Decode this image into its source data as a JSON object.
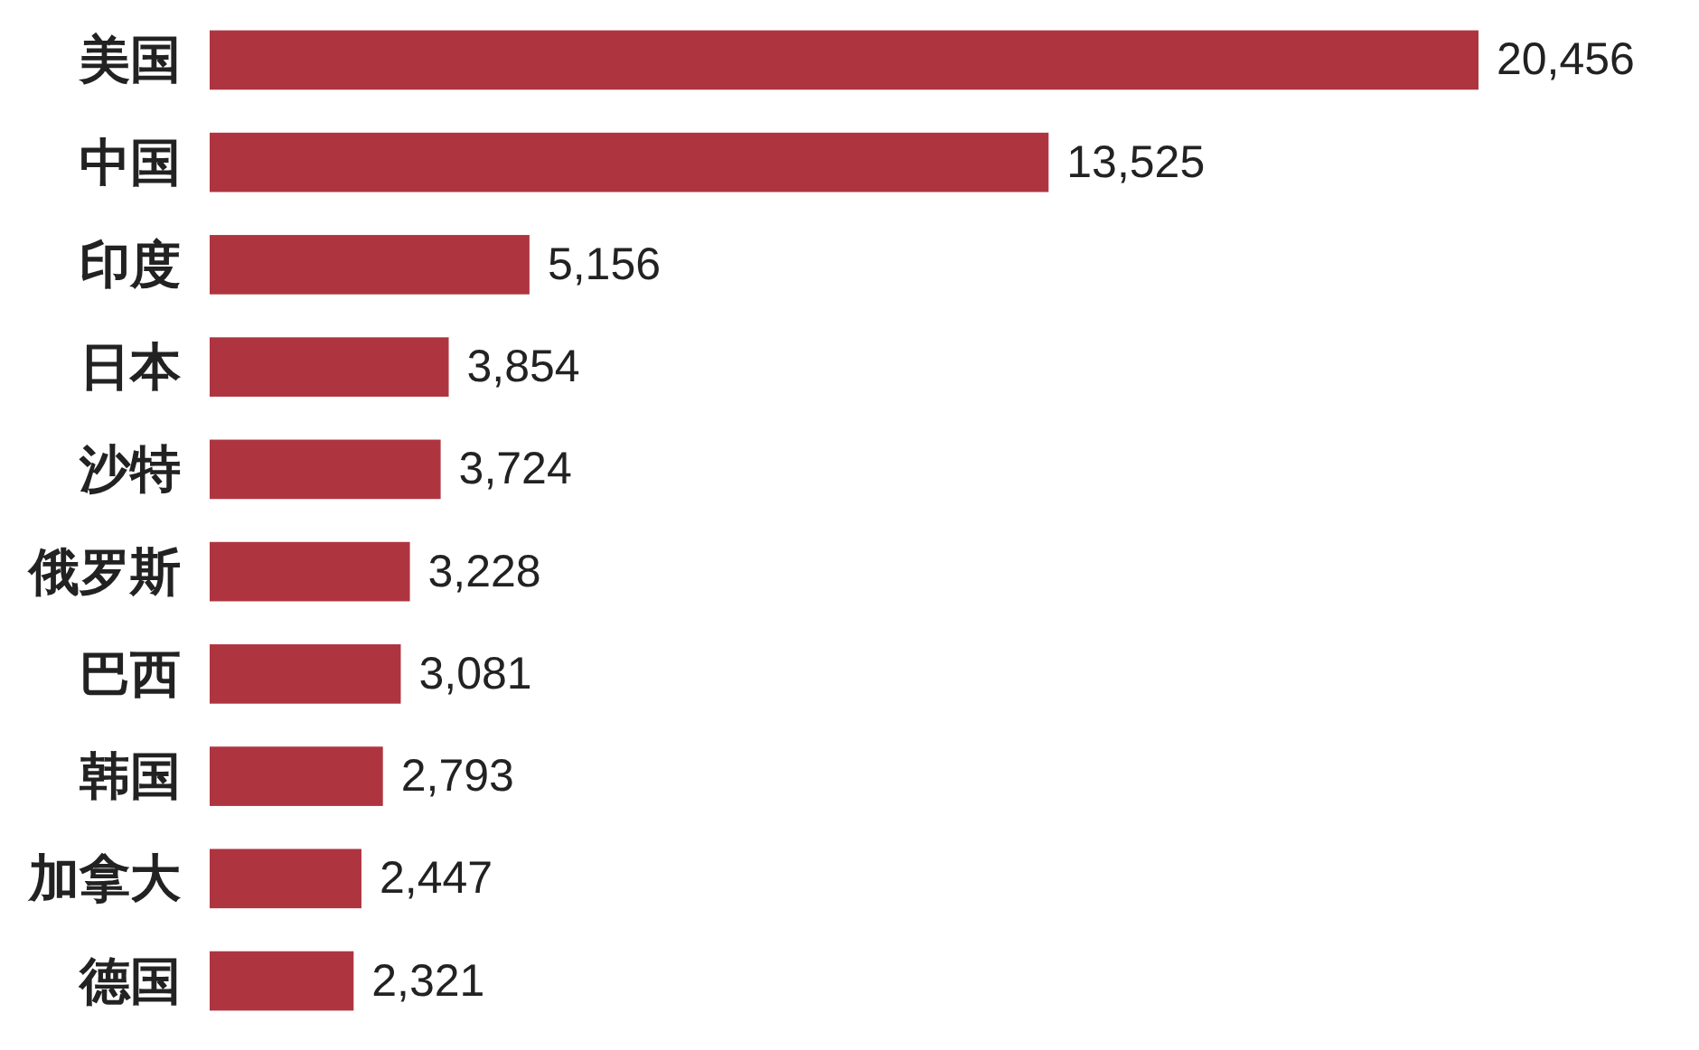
{
  "chart_data": {
    "type": "bar",
    "orientation": "horizontal",
    "categories": [
      "美国",
      "中国",
      "印度",
      "日本",
      "沙特",
      "俄罗斯",
      "巴西",
      "韩国",
      "加拿大",
      "德国"
    ],
    "values": [
      20456,
      13525,
      5156,
      3854,
      3724,
      3228,
      3081,
      2793,
      2447,
      2321
    ],
    "value_labels": [
      "20,456",
      "13,525",
      "5,156",
      "3,854",
      "3,724",
      "3,228",
      "3,081",
      "2,793",
      "2,447",
      "2,321"
    ],
    "color": "#ae3540",
    "xlim": [
      0,
      20456
    ],
    "tick_labels": "y"
  }
}
